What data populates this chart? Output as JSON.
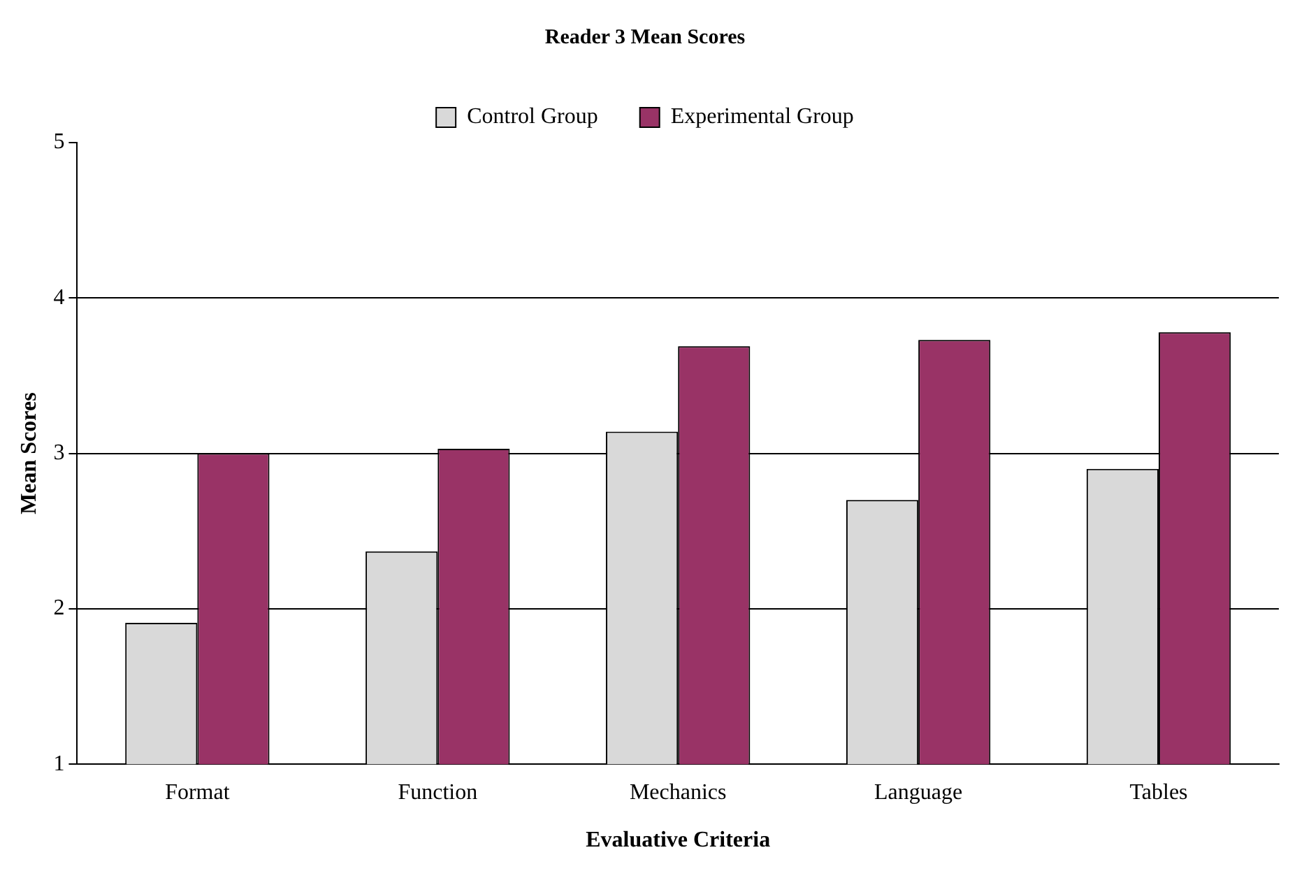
{
  "chart_data": {
    "type": "bar",
    "title": "Reader 3 Mean Scores",
    "xlabel": "Evaluative Criteria",
    "ylabel": "Mean Scores",
    "categories": [
      "Format",
      "Function",
      "Mechanics",
      "Language",
      "Tables"
    ],
    "series": [
      {
        "name": "Control Group",
        "color": "#d9d9d9",
        "values": [
          1.91,
          2.37,
          3.14,
          2.7,
          2.9
        ]
      },
      {
        "name": "Experimental Group",
        "color": "#993366",
        "values": [
          3.0,
          3.03,
          3.69,
          3.73,
          3.78
        ]
      }
    ],
    "ylim": [
      1,
      5
    ],
    "yticks": [
      1,
      2,
      3,
      4,
      5
    ],
    "grid": "y",
    "legend": "top"
  }
}
